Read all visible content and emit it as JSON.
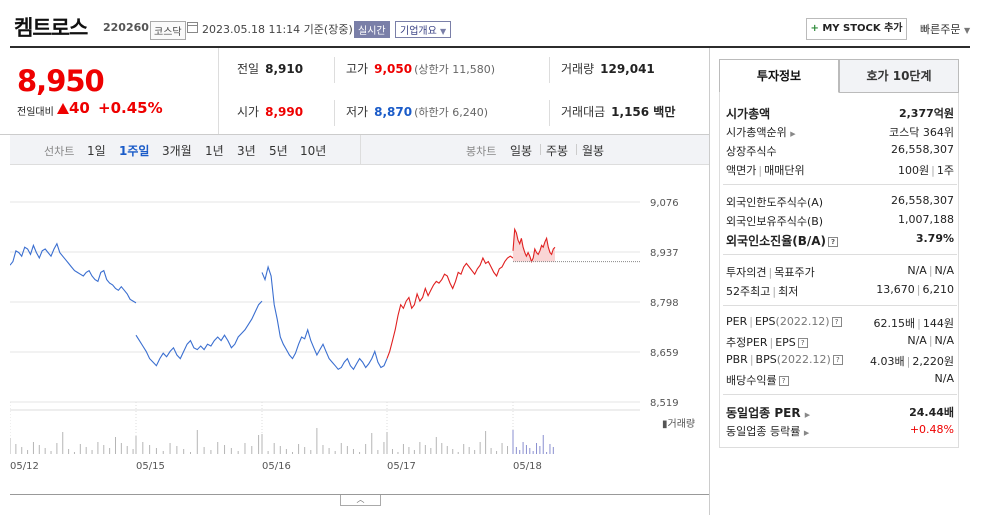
{
  "header": {
    "company": "켐트로스",
    "code": "220260",
    "market": "코스닥",
    "datetime": "2023.05.18 11:14 기준(장중)",
    "realtime": "실시간",
    "overview": "기업개요",
    "mystock": "MY STOCK 추가",
    "quick_order": "빠른주문"
  },
  "price": {
    "current": "8,950",
    "change_label": "전일대비",
    "change": "40",
    "change_pct": "+0.45%"
  },
  "quote": {
    "prev_close_label": "전일",
    "prev_close": "8,910",
    "high_label": "고가",
    "high": "9,050",
    "upper_limit": "(상한가 11,580)",
    "volume_label": "거래량",
    "volume": "129,041",
    "open_label": "시가",
    "open": "8,990",
    "low_label": "저가",
    "low": "8,870",
    "lower_limit": "(하한가 6,240)",
    "amount_label": "거래대금",
    "amount": "1,156 백만"
  },
  "toolbar": {
    "line_label": "선차트",
    "line_items": [
      "1일",
      "1주일",
      "3개월",
      "1년",
      "3년",
      "5년",
      "10년"
    ],
    "active_line": "1주일",
    "candle_label": "봉차트",
    "candle_items": [
      "일봉",
      "주봉",
      "월봉"
    ]
  },
  "chart_data": {
    "type": "line",
    "y_ticks": [
      "9,076",
      "8,937",
      "8,798",
      "8,659",
      "8,519"
    ],
    "ylim": [
      8519,
      9076
    ],
    "x_ticks": [
      "05/12",
      "05/15",
      "05/16",
      "05/17",
      "05/18"
    ],
    "volume_label": "거래량",
    "prev_close_ref": 8910,
    "colors": {
      "down": "#3b6fd0",
      "up": "#e02020",
      "fill": "#f9d5d5"
    },
    "series": [
      {
        "values": [
          8900,
          8910,
          8940,
          8935,
          8925,
          8950,
          8945,
          8930,
          8955,
          8935,
          8920,
          8940,
          8945,
          8935,
          8925,
          8945,
          8960,
          8935,
          8925,
          8915,
          8905,
          8895,
          8885,
          8880,
          8875,
          8870,
          8880,
          8885,
          8870,
          8860,
          8855,
          8880,
          8885,
          8860,
          8850,
          8845,
          8835,
          8830,
          8840,
          8830,
          8820,
          8805,
          8800,
          8795
        ]
      },
      {
        "values": [
          8705,
          8690,
          8675,
          8660,
          8640,
          8630,
          8620,
          8640,
          8655,
          8645,
          8660,
          8670,
          8650,
          8640,
          8660,
          8680,
          8690,
          8670,
          8665,
          8675,
          8665,
          8680,
          8675,
          8690,
          8700,
          8690,
          8705,
          8690,
          8670,
          8680,
          8700,
          8710,
          8720,
          8735,
          8750,
          8770,
          8790,
          8800
        ]
      },
      {
        "values": [
          8880,
          8860,
          8895,
          8870,
          8790,
          8750,
          8700,
          8680,
          8665,
          8650,
          8640,
          8655,
          8680,
          8700,
          8695,
          8720,
          8690,
          8670,
          8650,
          8665,
          8680,
          8660,
          8640,
          8630,
          8620,
          8610,
          8615,
          8630,
          8640,
          8620,
          8610,
          8625,
          8640,
          8630,
          8615,
          8625,
          8640,
          8660,
          8630,
          8615,
          8620,
          8640
        ]
      },
      {
        "values": [
          8640,
          8660,
          8690,
          8720,
          8760,
          8790,
          8780,
          8800,
          8810,
          8780,
          8790,
          8820,
          8800,
          8810,
          8835,
          8815,
          8830,
          8845,
          8855,
          8850,
          8860,
          8875,
          8870,
          8850,
          8835,
          8855,
          8880,
          8875,
          8895,
          8905,
          8895,
          8885,
          8875,
          8890,
          8900,
          8920,
          8905,
          8910,
          8895,
          8880,
          8870,
          8890,
          8895,
          8910,
          8920,
          8925,
          8920
        ]
      },
      {
        "values": [
          8940,
          9000,
          8990,
          8970,
          8960,
          8975,
          8950,
          8935,
          8925,
          8935,
          8925,
          8910,
          8920,
          8945,
          8935,
          8930,
          8940,
          8955,
          8950,
          8965,
          8975,
          8950,
          8935,
          8930,
          8945,
          8950
        ]
      }
    ]
  },
  "panel": {
    "tab_info": "투자정보",
    "tab_order": "호가 10단계",
    "market_cap_label": "시가총액",
    "market_cap": "2,377억원",
    "market_cap_rank_label": "시가총액순위",
    "market_cap_rank": "코스닥 364위",
    "shares_label": "상장주식수",
    "shares": "26,558,307",
    "par_label": "액면가",
    "trade_unit_label": "매매단위",
    "par": "100원",
    "trade_unit": "1주",
    "foreign_limit_label": "외국인한도주식수(A)",
    "foreign_limit": "26,558,307",
    "foreign_hold_label": "외국인보유주식수(B)",
    "foreign_hold": "1,007,188",
    "foreign_ratio_label": "외국인소진율(B/A)",
    "foreign_ratio": "3.79%",
    "opinion_label": "투자의견",
    "target_label": "목표주가",
    "opinion": "N/A",
    "target": "N/A",
    "high52_label": "52주최고",
    "low52_label": "최저",
    "high52": "13,670",
    "low52": "6,210",
    "per_label": "PER",
    "eps_label": "EPS",
    "period": "(2022.12)",
    "per": "62.15배",
    "eps": "144원",
    "est_per_label": "추정PER",
    "est_eps_label": "EPS",
    "est_per": "N/A",
    "est_eps": "N/A",
    "pbr_label": "PBR",
    "bps_label": "BPS",
    "pbr": "4.03배",
    "bps": "2,220원",
    "div_label": "배당수익률",
    "div": "N/A",
    "sector_per_label": "동일업종 PER",
    "sector_per": "24.44배",
    "sector_rate_label": "동일업종 등락률",
    "sector_rate": "+0.48%"
  }
}
